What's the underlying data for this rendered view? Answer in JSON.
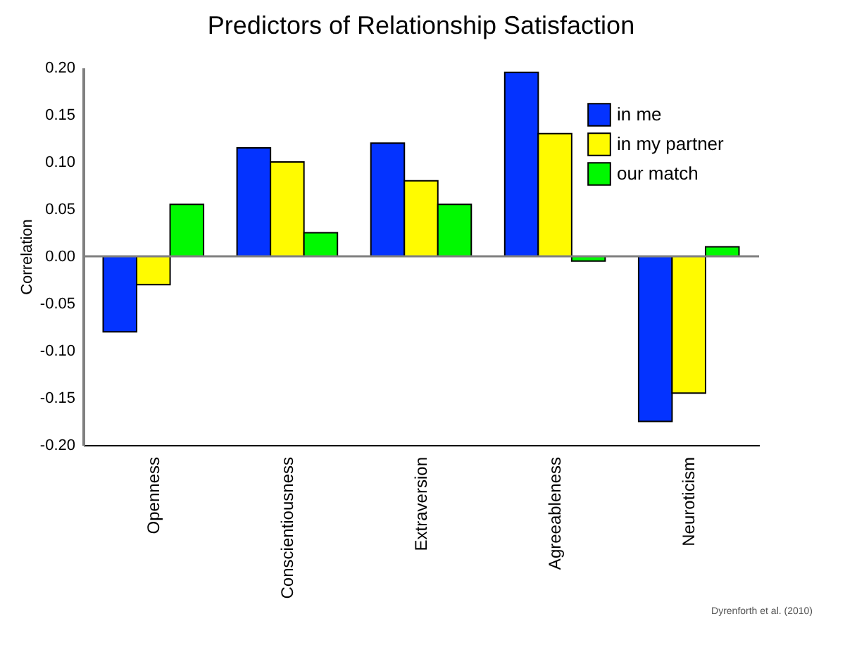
{
  "chart_data": {
    "type": "bar",
    "title": "Predictors of Relationship Satisfaction",
    "ylabel": "Correlation",
    "categories": [
      "Openness",
      "Conscientiousness",
      "Extraversion",
      "Agreeableness",
      "Neuroticism"
    ],
    "series": [
      {
        "name": "in me",
        "color": "#0433ff",
        "values": [
          -0.08,
          0.115,
          0.12,
          0.195,
          -0.175
        ]
      },
      {
        "name": "in my partner",
        "color": "#fffb00",
        "values": [
          -0.03,
          0.1,
          0.08,
          0.13,
          -0.145
        ]
      },
      {
        "name": "our match",
        "color": "#00f900",
        "values": [
          0.055,
          0.025,
          0.055,
          -0.005,
          0.01
        ]
      }
    ],
    "ylim": [
      -0.2,
      0.2
    ],
    "yticks": [
      {
        "value": -0.2,
        "label": "-0.20"
      },
      {
        "value": -0.15,
        "label": "-0.15"
      },
      {
        "value": -0.1,
        "label": "-0.10"
      },
      {
        "value": -0.05,
        "label": "-0.05"
      },
      {
        "value": 0,
        "label": "0.00"
      },
      {
        "value": 0.05,
        "label": "0.05"
      },
      {
        "value": 0.1,
        "label": "0.10"
      },
      {
        "value": 0.15,
        "label": "0.15"
      },
      {
        "value": 0.2,
        "label": "0.20"
      }
    ],
    "ref_lines": [
      {
        "axis": "y",
        "value": 0,
        "color": "#808080"
      }
    ],
    "grid": false,
    "legend": "top right",
    "annotations": [
      "Dyrenforth et al. (2010)"
    ]
  }
}
